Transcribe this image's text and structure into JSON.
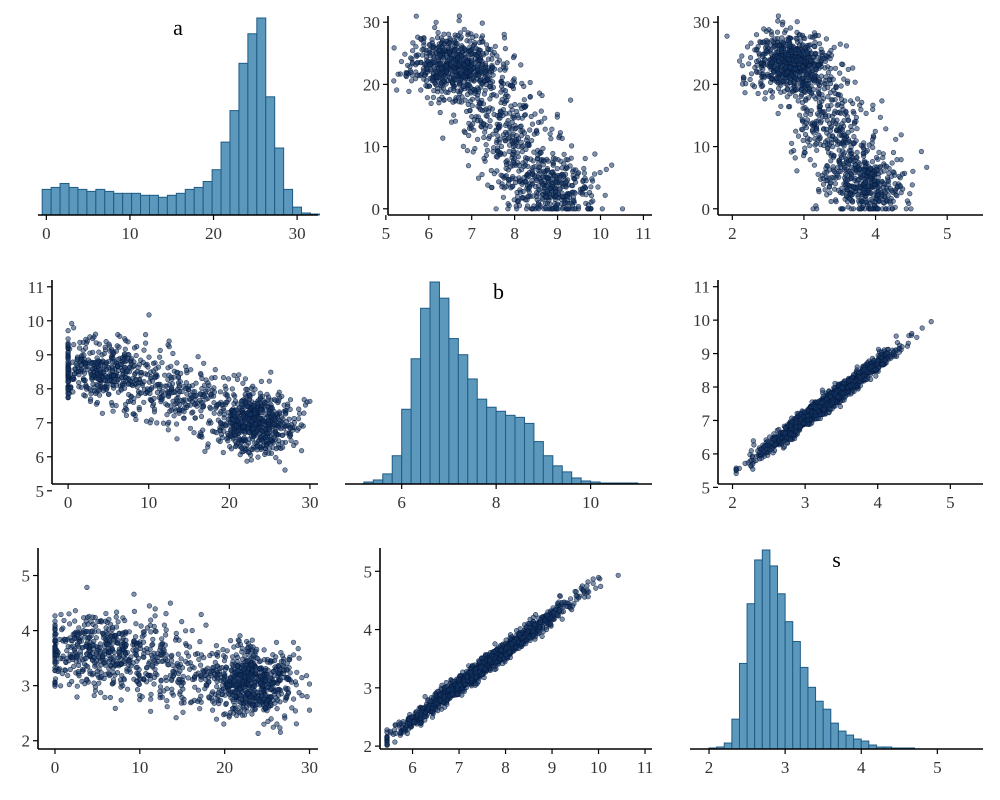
{
  "chart_data": [
    {
      "type": "histogram",
      "title": "a",
      "xticks": [
        0,
        10,
        20,
        30
      ],
      "xlim": [
        -1,
        32.5
      ],
      "bin_start": -0.5,
      "bin_width": 1.07,
      "heights": [
        0.13,
        0.14,
        0.16,
        0.14,
        0.13,
        0.12,
        0.13,
        0.12,
        0.11,
        0.11,
        0.11,
        0.1,
        0.1,
        0.09,
        0.1,
        0.11,
        0.13,
        0.14,
        0.17,
        0.23,
        0.37,
        0.53,
        0.77,
        0.92,
        1.0,
        0.6,
        0.34,
        0.13,
        0.04,
        0.01,
        0.005
      ],
      "color": "#5b98bc"
    },
    {
      "type": "scatter",
      "xticks": [
        5,
        6,
        7,
        8,
        9,
        10,
        11
      ],
      "yticks": [
        0,
        10,
        20,
        30
      ],
      "xlim": [
        5.05,
        11.2
      ],
      "ylim": [
        -1,
        31
      ],
      "model": {
        "points": 1300,
        "seed": 11,
        "clusters": [
          {
            "weight": 0.48,
            "x": [
              6.6,
              0.5
            ],
            "y": [
              23.2,
              2.6
            ],
            "rho": -0.05,
            "ymin": 14,
            "ymax": 31
          },
          {
            "weight": 0.27,
            "x": [
              8.85,
              0.55
            ],
            "y": [
              3.5,
              2.6
            ],
            "rho": 0.0,
            "ymin": 0,
            "ymax": 12
          },
          {
            "weight": 0.25,
            "x": [
              7.8,
              0.55
            ],
            "y": [
              12.5,
              4.8
            ],
            "rho": -0.35,
            "ymin": 0,
            "ymax": 25
          }
        ]
      },
      "color": "#143462"
    },
    {
      "type": "scatter",
      "xticks": [
        2,
        3,
        4,
        5
      ],
      "yticks": [
        0,
        10,
        20,
        30
      ],
      "xlim": [
        1.8,
        5.5
      ],
      "ylim": [
        -1,
        31
      ],
      "model": {
        "points": 1300,
        "seed": 12,
        "clusters": [
          {
            "weight": 0.48,
            "x": [
              2.85,
              0.27
            ],
            "y": [
              23.2,
              2.6
            ],
            "rho": -0.05,
            "ymin": 14,
            "ymax": 31
          },
          {
            "weight": 0.27,
            "x": [
              3.85,
              0.3
            ],
            "y": [
              3.5,
              2.6
            ],
            "rho": 0.0,
            "ymin": 0,
            "ymax": 12
          },
          {
            "weight": 0.25,
            "x": [
              3.4,
              0.33
            ],
            "y": [
              12.5,
              4.8
            ],
            "rho": -0.35,
            "ymin": 0,
            "ymax": 25
          }
        ]
      },
      "color": "#143462"
    },
    {
      "type": "scatter",
      "xticks": [
        0,
        10,
        20,
        30
      ],
      "yticks": [
        5,
        6,
        7,
        8,
        9,
        10,
        11
      ],
      "xlim": [
        -2,
        31
      ],
      "ylim": [
        5.2,
        11.2
      ],
      "model": {
        "points": 1300,
        "seed": 21,
        "clusters": [
          {
            "weight": 0.48,
            "x": [
              23.2,
              2.6
            ],
            "y": [
              7.0,
              0.45
            ],
            "rho": 0.0,
            "xmin": 14,
            "xmax": 30
          },
          {
            "weight": 0.27,
            "x": [
              4.0,
              3.3
            ],
            "y": [
              8.55,
              0.45
            ],
            "rho": 0.0,
            "xmin": 0,
            "xmax": 13
          },
          {
            "weight": 0.25,
            "x": [
              12.0,
              4.8
            ],
            "y": [
              7.9,
              0.55
            ],
            "rho": -0.3,
            "xmin": 0,
            "xmax": 25
          }
        ]
      },
      "color": "#143462"
    },
    {
      "type": "histogram",
      "title": "b",
      "xticks": [
        6,
        8,
        10
      ],
      "xlim": [
        4.8,
        11.3
      ],
      "bin_start": 5.2,
      "bin_width": 0.2,
      "heights": [
        0.01,
        0.02,
        0.05,
        0.14,
        0.37,
        0.62,
        0.87,
        1.0,
        0.92,
        0.72,
        0.64,
        0.52,
        0.42,
        0.38,
        0.36,
        0.34,
        0.33,
        0.3,
        0.21,
        0.14,
        0.09,
        0.06,
        0.03,
        0.015,
        0.01,
        0.005,
        0.005,
        0.005,
        0.005
      ],
      "color": "#5b98bc"
    },
    {
      "type": "scatter",
      "xticks": [
        2,
        3,
        4,
        5
      ],
      "yticks": [
        5,
        6,
        7,
        8,
        9,
        10,
        11
      ],
      "xlim": [
        1.8,
        5.45
      ],
      "ylim": [
        5.1,
        11.2
      ],
      "model": {
        "points": 1400,
        "seed": 31,
        "linear": {
          "x": [
            3.3,
            0.45
          ],
          "slope": 1.65,
          "intercept": 2.1,
          "noise": 0.13,
          "xmin": 2.05,
          "xmax": 5.35
        }
      },
      "color": "#143462"
    },
    {
      "type": "scatter",
      "xticks": [
        0,
        10,
        20,
        30
      ],
      "yticks": [
        2,
        3,
        4,
        5
      ],
      "xlim": [
        -2,
        31
      ],
      "ylim": [
        1.85,
        5.5
      ],
      "model": {
        "points": 1300,
        "seed": 41,
        "clusters": [
          {
            "weight": 0.48,
            "x": [
              23.2,
              2.6
            ],
            "y": [
              3.05,
              0.32
            ],
            "rho": 0.0,
            "xmin": 14,
            "xmax": 30
          },
          {
            "weight": 0.27,
            "x": [
              4.0,
              3.3
            ],
            "y": [
              3.65,
              0.32
            ],
            "rho": 0.0,
            "xmin": 0,
            "xmax": 13
          },
          {
            "weight": 0.25,
            "x": [
              12.0,
              4.8
            ],
            "y": [
              3.4,
              0.38
            ],
            "rho": -0.3,
            "xmin": 0,
            "xmax": 25
          }
        ]
      },
      "color": "#143462"
    },
    {
      "type": "scatter",
      "xticks": [
        6,
        7,
        8,
        9,
        10,
        11
      ],
      "yticks": [
        2,
        3,
        4,
        5
      ],
      "xlim": [
        5.3,
        11.15
      ],
      "ylim": [
        1.95,
        5.4
      ],
      "model": {
        "points": 1400,
        "seed": 51,
        "linear": {
          "x": [
            7.5,
            0.95
          ],
          "slope": 0.595,
          "intercept": -1.12,
          "noise": 0.08,
          "xmin": 5.45,
          "xmax": 11.0
        }
      },
      "color": "#143462"
    },
    {
      "type": "histogram",
      "title": "s",
      "xticks": [
        2,
        3,
        4,
        5
      ],
      "xlim": [
        1.75,
        5.6
      ],
      "bin_start": 2.0,
      "bin_width": 0.1,
      "heights": [
        0.005,
        0.01,
        0.03,
        0.15,
        0.43,
        0.73,
        0.95,
        1.0,
        0.92,
        0.78,
        0.64,
        0.54,
        0.41,
        0.31,
        0.24,
        0.2,
        0.13,
        0.09,
        0.07,
        0.05,
        0.04,
        0.02,
        0.01,
        0.01,
        0.005,
        0.005,
        0.005
      ],
      "color": "#5b98bc"
    }
  ]
}
